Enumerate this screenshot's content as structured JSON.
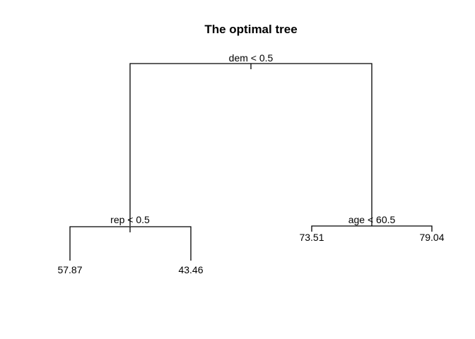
{
  "title": "The optimal tree",
  "tree": {
    "root": {
      "split": "dem < 0.5"
    },
    "left_node": {
      "split": "rep < 0.5"
    },
    "right_node": {
      "split": "age < 60.5"
    },
    "leaves": {
      "left_left": "57.87",
      "left_right": "43.46",
      "right_left": "73.51",
      "right_right": "79.04"
    }
  }
}
